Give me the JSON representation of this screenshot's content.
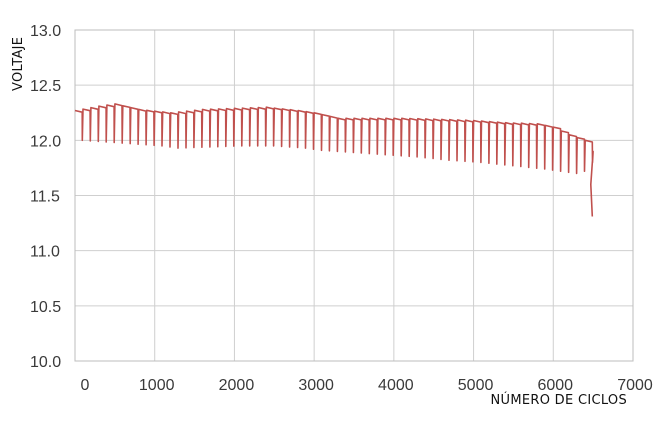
{
  "colors": {
    "series": "#c0504d",
    "grid": "#cfcfcf",
    "frame": "#bdbdbd"
  },
  "chart_data": {
    "type": "line",
    "title": "",
    "xlabel": "NÚMERO DE CICLOS",
    "ylabel": "VOLTAJE",
    "xlim": [
      0,
      7000
    ],
    "ylim": [
      10.0,
      13.0
    ],
    "xticks": [
      0,
      1000,
      2000,
      3000,
      4000,
      5000,
      6000,
      7000
    ],
    "yticks": [
      10.0,
      10.5,
      11.0,
      11.5,
      12.0,
      12.5,
      13.0
    ],
    "xtick_labels": [
      "0",
      "1000",
      "2000",
      "3000",
      "4000",
      "5000",
      "6000",
      "7000"
    ],
    "ytick_labels": [
      "10.0",
      "10.5",
      "11.0",
      "11.5",
      "12.0",
      "12.5",
      "13.0"
    ],
    "grid": true,
    "legend": "none",
    "series": [
      {
        "cycle_interval": 100,
        "upper_envelope": {
          "x": [
            0,
            300,
            500,
            800,
            1200,
            1600,
            2000,
            2400,
            2800,
            3000,
            3300,
            3700,
            4100,
            4600,
            5000,
            5400,
            5800,
            6000,
            6200,
            6400,
            6450,
            6500
          ],
          "y": [
            12.27,
            12.31,
            12.33,
            12.28,
            12.25,
            12.28,
            12.29,
            12.3,
            12.27,
            12.25,
            12.2,
            12.2,
            12.2,
            12.19,
            12.18,
            12.16,
            12.15,
            12.12,
            12.05,
            12.0,
            11.95,
            11.9
          ]
        },
        "lower_envelope": {
          "x": [
            0,
            400,
            800,
            1000,
            1200,
            1600,
            2000,
            2400,
            2800,
            3000,
            3400,
            3800,
            4200,
            4600,
            5000,
            5400,
            5800,
            6000,
            6200,
            6300,
            6400,
            6450,
            6500
          ],
          "y": [
            12.0,
            11.98,
            11.96,
            11.95,
            11.93,
            11.94,
            11.95,
            11.95,
            11.93,
            11.91,
            11.89,
            11.87,
            11.85,
            11.82,
            11.8,
            11.77,
            11.74,
            11.72,
            11.7,
            11.72,
            11.8,
            11.55,
            11.31
          ]
        }
      }
    ]
  }
}
